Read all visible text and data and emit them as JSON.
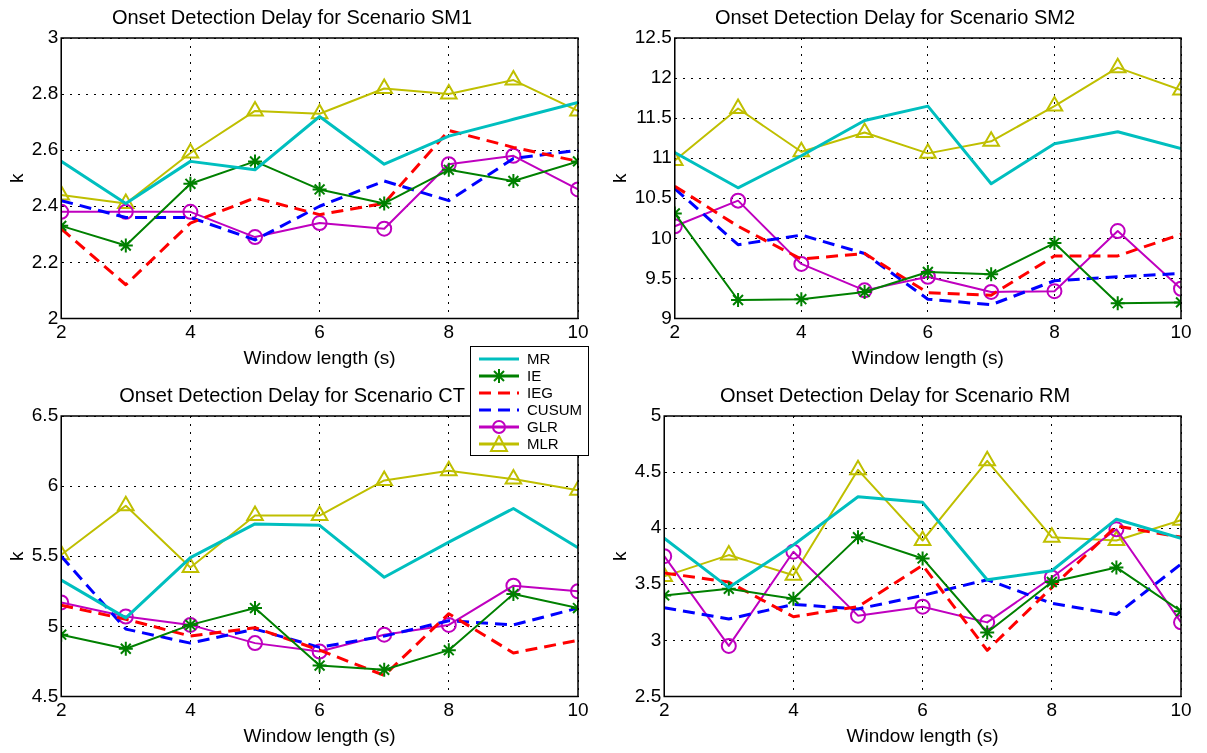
{
  "chart_data": [
    {
      "type": "line",
      "title": "Onset Detection Delay for Scenario SM1",
      "xlabel": "Window length (s)",
      "ylabel": "k",
      "x": [
        2,
        3,
        4,
        5,
        6,
        7,
        8,
        9,
        10
      ],
      "xlim": [
        2,
        10
      ],
      "xticks": [
        2,
        4,
        6,
        8,
        10
      ],
      "ylim": [
        2,
        3
      ],
      "yticks": [
        2,
        2.2,
        2.4,
        2.6,
        2.8,
        3
      ],
      "grid": true,
      "legend": "bottom right",
      "series": [
        {
          "name": "MR",
          "color": "#00bfbf",
          "line_style": "solid",
          "marker": "none",
          "values": [
            2.56,
            2.41,
            2.56,
            2.53,
            2.72,
            2.55,
            2.65,
            2.71,
            2.77
          ]
        },
        {
          "name": "IE",
          "color": "#008000",
          "line_style": "solid",
          "marker": "cross",
          "values": [
            2.33,
            2.26,
            2.48,
            2.56,
            2.46,
            2.41,
            2.53,
            2.49,
            2.56
          ]
        },
        {
          "name": "IEG",
          "color": "#ff0000",
          "line_style": "dashed",
          "marker": "none",
          "values": [
            2.32,
            2.12,
            2.34,
            2.43,
            2.37,
            2.41,
            2.67,
            2.61,
            2.56
          ]
        },
        {
          "name": "CUSUM",
          "color": "#0000ff",
          "line_style": "dashed",
          "marker": "none",
          "values": [
            2.42,
            2.36,
            2.36,
            2.28,
            2.4,
            2.49,
            2.42,
            2.57,
            2.6
          ]
        },
        {
          "name": "GLR",
          "color": "#bf00bf",
          "line_style": "solid",
          "marker": "circle",
          "values": [
            2.38,
            2.38,
            2.38,
            2.29,
            2.34,
            2.32,
            2.55,
            2.58,
            2.46
          ]
        },
        {
          "name": "MLR",
          "color": "#bfbf00",
          "line_style": "solid",
          "marker": "triangle",
          "values": [
            2.44,
            2.41,
            2.59,
            2.74,
            2.73,
            2.82,
            2.8,
            2.85,
            2.74
          ]
        }
      ]
    },
    {
      "type": "line",
      "title": "Onset Detection Delay for Scenario SM2",
      "xlabel": "Window length (s)",
      "ylabel": "k",
      "x": [
        2,
        3,
        4,
        5,
        6,
        7,
        8,
        9,
        10
      ],
      "xlim": [
        2,
        10
      ],
      "xticks": [
        2,
        4,
        6,
        8,
        10
      ],
      "ylim": [
        9,
        12.5
      ],
      "yticks": [
        9,
        9.5,
        10,
        10.5,
        11,
        11.5,
        12,
        12.5
      ],
      "grid": true,
      "series": [
        {
          "color": "#00bfbf",
          "line_style": "solid",
          "marker": "none",
          "values": [
            11.07,
            10.63,
            11.03,
            11.47,
            11.65,
            10.68,
            11.18,
            11.33,
            11.12
          ]
        },
        {
          "color": "#008000",
          "line_style": "solid",
          "marker": "cross",
          "values": [
            10.31,
            9.23,
            9.24,
            9.33,
            9.58,
            9.55,
            9.94,
            9.19,
            9.2
          ]
        },
        {
          "color": "#ff0000",
          "line_style": "dashed",
          "marker": "none",
          "values": [
            10.65,
            10.15,
            9.74,
            9.81,
            9.32,
            9.29,
            9.78,
            9.78,
            10.05
          ]
        },
        {
          "color": "#0000ff",
          "line_style": "dashed",
          "marker": "none",
          "values": [
            10.62,
            9.92,
            10.04,
            9.81,
            9.24,
            9.17,
            9.47,
            9.52,
            9.56
          ]
        },
        {
          "color": "#bf00bf",
          "line_style": "solid",
          "marker": "circle",
          "values": [
            10.15,
            10.47,
            9.68,
            9.35,
            9.52,
            9.33,
            9.34,
            10.09,
            9.37
          ]
        },
        {
          "color": "#bfbf00",
          "line_style": "solid",
          "marker": "triangle",
          "values": [
            10.97,
            11.62,
            11.08,
            11.32,
            11.06,
            11.21,
            11.65,
            12.13,
            11.85
          ]
        }
      ]
    },
    {
      "type": "line",
      "title": "Onset Detection Delay for Scenario CT",
      "xlabel": "Window length (s)",
      "ylabel": "k",
      "x": [
        2,
        3,
        4,
        5,
        6,
        7,
        8,
        9,
        10
      ],
      "xlim": [
        2,
        10
      ],
      "xticks": [
        2,
        4,
        6,
        8,
        10
      ],
      "ylim": [
        4.5,
        6.5
      ],
      "yticks": [
        4.5,
        5,
        5.5,
        6,
        6.5
      ],
      "grid": true,
      "series": [
        {
          "color": "#00bfbf",
          "line_style": "solid",
          "marker": "none",
          "values": [
            5.33,
            5.06,
            5.49,
            5.73,
            5.72,
            5.35,
            5.6,
            5.84,
            5.56
          ]
        },
        {
          "color": "#008000",
          "line_style": "solid",
          "marker": "cross",
          "values": [
            4.94,
            4.84,
            5.01,
            5.13,
            4.72,
            4.69,
            4.83,
            5.23,
            5.13
          ]
        },
        {
          "color": "#ff0000",
          "line_style": "dashed",
          "marker": "none",
          "values": [
            5.15,
            5.05,
            4.93,
            4.99,
            4.83,
            4.65,
            5.09,
            4.81,
            4.9
          ]
        },
        {
          "color": "#0000ff",
          "line_style": "dashed",
          "marker": "none",
          "values": [
            5.5,
            4.98,
            4.88,
            4.98,
            4.85,
            4.93,
            5.04,
            5.01,
            5.13
          ]
        },
        {
          "color": "#bf00bf",
          "line_style": "solid",
          "marker": "circle",
          "values": [
            5.17,
            5.07,
            5.01,
            4.88,
            4.82,
            4.94,
            5.01,
            5.29,
            5.25
          ]
        },
        {
          "color": "#bfbf00",
          "line_style": "solid",
          "marker": "triangle",
          "values": [
            5.51,
            5.86,
            5.42,
            5.79,
            5.79,
            6.04,
            6.11,
            6.05,
            5.97
          ]
        }
      ]
    },
    {
      "type": "line",
      "title": "Onset Detection Delay for Scenario RM",
      "xlabel": "Window length (s)",
      "ylabel": "k",
      "x": [
        2,
        3,
        4,
        5,
        6,
        7,
        8,
        9,
        10
      ],
      "xlim": [
        2,
        10
      ],
      "xticks": [
        2,
        4,
        6,
        8,
        10
      ],
      "ylim": [
        2.5,
        5
      ],
      "yticks": [
        2.5,
        3,
        3.5,
        4,
        4.5,
        5
      ],
      "grid": true,
      "series": [
        {
          "color": "#00bfbf",
          "line_style": "solid",
          "marker": "none",
          "values": [
            3.91,
            3.47,
            3.85,
            4.28,
            4.23,
            3.54,
            3.62,
            4.08,
            3.91
          ]
        },
        {
          "color": "#008000",
          "line_style": "solid",
          "marker": "cross",
          "values": [
            3.4,
            3.46,
            3.37,
            3.92,
            3.73,
            3.07,
            3.52,
            3.65,
            3.26
          ]
        },
        {
          "color": "#ff0000",
          "line_style": "dashed",
          "marker": "none",
          "values": [
            3.6,
            3.52,
            3.21,
            3.3,
            3.67,
            2.91,
            3.47,
            4.02,
            3.92
          ]
        },
        {
          "color": "#0000ff",
          "line_style": "dashed",
          "marker": "none",
          "values": [
            3.29,
            3.19,
            3.32,
            3.28,
            3.4,
            3.54,
            3.33,
            3.23,
            3.68
          ]
        },
        {
          "color": "#bf00bf",
          "line_style": "solid",
          "marker": "circle",
          "values": [
            3.75,
            2.95,
            3.79,
            3.22,
            3.3,
            3.16,
            3.56,
            3.99,
            3.16
          ]
        },
        {
          "color": "#bfbf00",
          "line_style": "solid",
          "marker": "triangle",
          "values": [
            3.57,
            3.76,
            3.58,
            4.52,
            3.89,
            4.6,
            3.92,
            3.89,
            4.07
          ]
        }
      ]
    }
  ]
}
